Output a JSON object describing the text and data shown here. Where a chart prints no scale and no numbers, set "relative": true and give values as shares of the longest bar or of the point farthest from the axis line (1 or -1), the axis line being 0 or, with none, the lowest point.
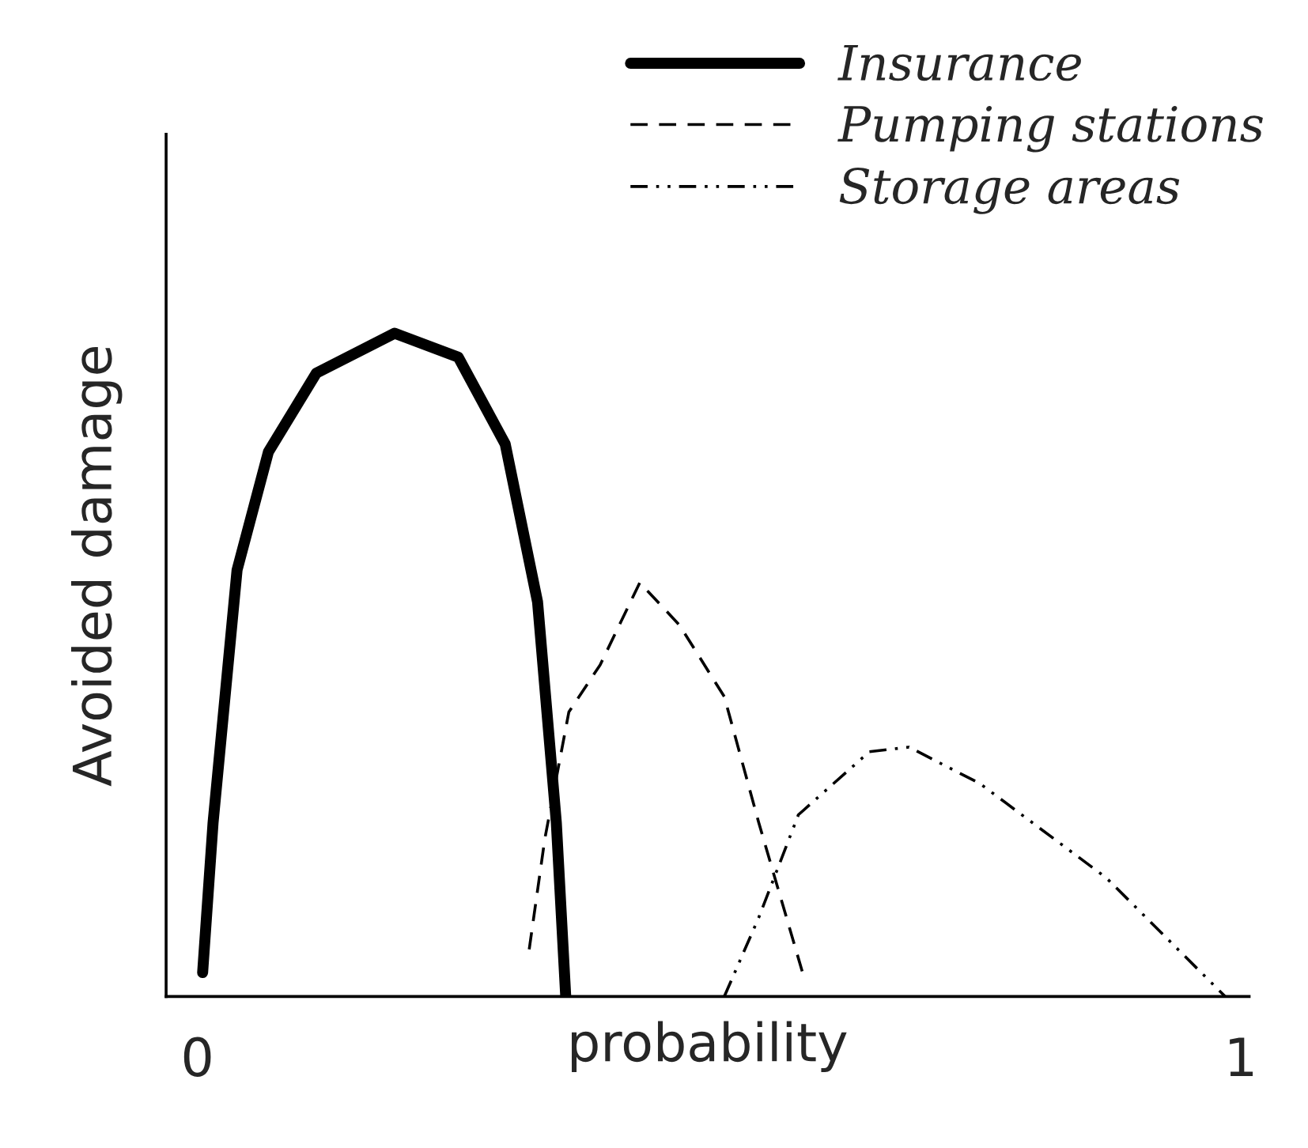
{
  "chart_data": {
    "type": "line",
    "relative": true,
    "xlabel": "probability",
    "ylabel": "Avoided damage",
    "xlim": [
      -0.03,
      1.008
    ],
    "xticks": [
      0,
      1
    ],
    "legend": "top right",
    "grid": false,
    "marker": "none",
    "series": [
      {
        "name": "Insurance",
        "color": "#000000",
        "line_style": "solid",
        "x": [
          0.005,
          0.015,
          0.038,
          0.068,
          0.114,
          0.189,
          0.25,
          0.295,
          0.326,
          0.344,
          0.353
        ],
        "values": [
          0.036,
          0.262,
          0.643,
          0.821,
          0.94,
          1.0,
          0.964,
          0.833,
          0.595,
          0.262,
          0
        ]
      },
      {
        "name": "Pumping stations",
        "color": "#000000",
        "line_style": "dashed",
        "x": [
          0.318,
          0.333,
          0.356,
          0.386,
          0.424,
          0.462,
          0.505,
          0.538,
          0.58
        ],
        "values": [
          0.071,
          0.238,
          0.429,
          0.5,
          0.624,
          0.56,
          0.452,
          0.262,
          0.036
        ]
      },
      {
        "name": "Storage areas",
        "color": "#000000",
        "line_style": "dashdot",
        "x": [
          0.505,
          0.538,
          0.576,
          0.644,
          0.682,
          0.75,
          0.871,
          0.985
        ],
        "values": [
          0,
          0.119,
          0.274,
          0.369,
          0.376,
          0.321,
          0.179,
          0
        ]
      }
    ]
  }
}
